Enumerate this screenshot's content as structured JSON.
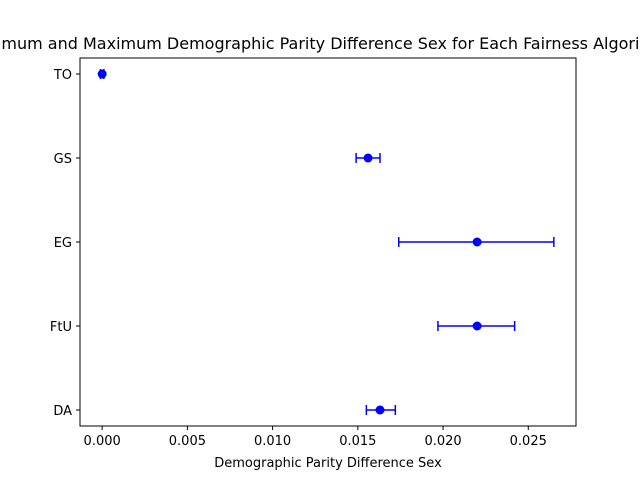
{
  "chart_data": {
    "type": "scatter",
    "title": "Minimum and Maximum Demographic Parity Difference Sex for Each Fairness Algorithm",
    "xlabel": "Demographic Parity Difference Sex",
    "ylabel": "",
    "xlim": [
      -0.0013,
      0.0278
    ],
    "x_ticks": [
      0.0,
      0.005,
      0.01,
      0.015,
      0.02,
      0.025
    ],
    "x_tick_labels": [
      "0.000",
      "0.005",
      "0.010",
      "0.015",
      "0.020",
      "0.025"
    ],
    "categories": [
      "TO",
      "GS",
      "EG",
      "FtU",
      "DA"
    ],
    "points": [
      {
        "category": "TO",
        "value": 0.0,
        "min": -0.0001,
        "max": 0.0001
      },
      {
        "category": "GS",
        "value": 0.0156,
        "min": 0.0149,
        "max": 0.0163
      },
      {
        "category": "EG",
        "value": 0.022,
        "min": 0.0174,
        "max": 0.0265
      },
      {
        "category": "FtU",
        "value": 0.022,
        "min": 0.0197,
        "max": 0.0242
      },
      {
        "category": "DA",
        "value": 0.0163,
        "min": 0.0155,
        "max": 0.0172
      }
    ],
    "color": "#0000ff",
    "grid": false,
    "legend": "none"
  }
}
